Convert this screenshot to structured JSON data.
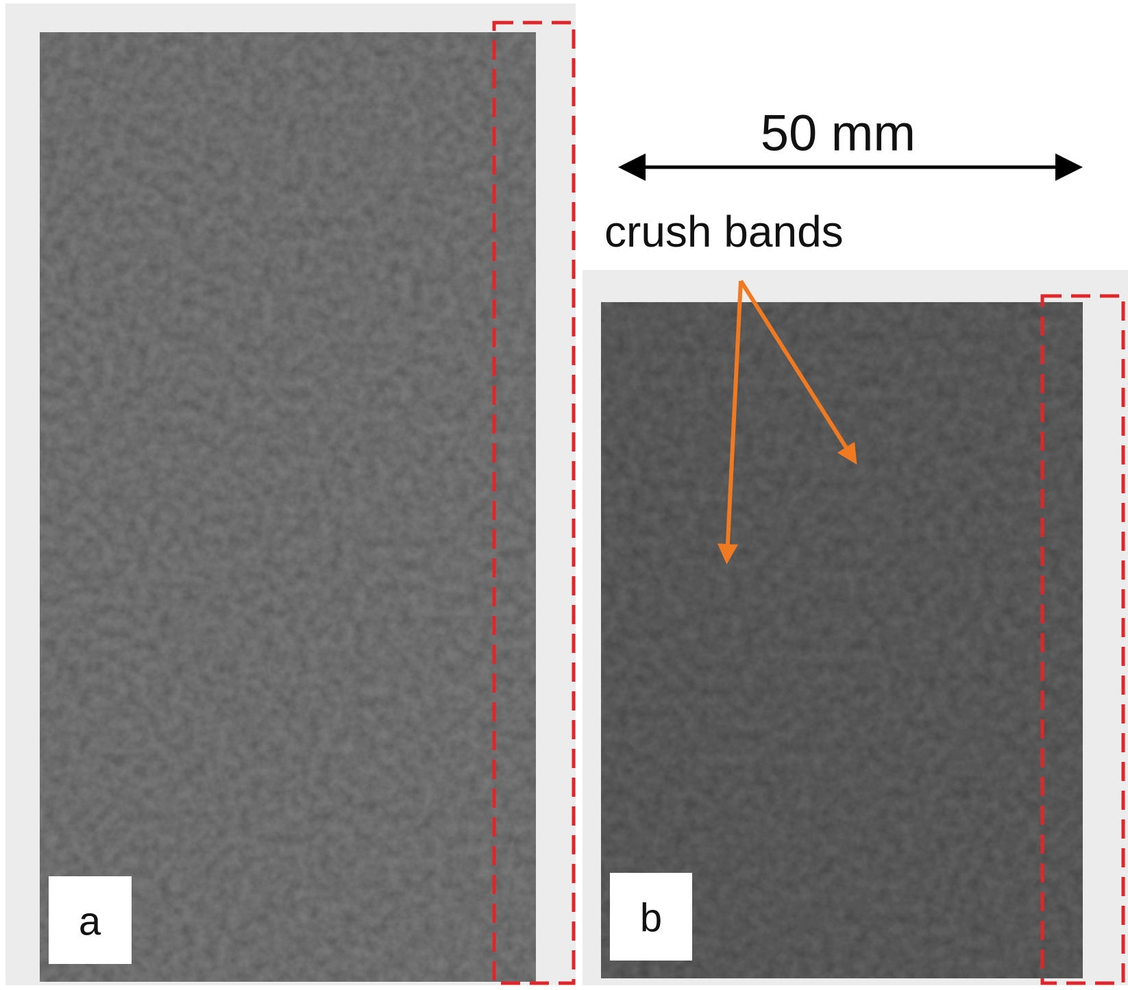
{
  "scale_label": "50 mm",
  "annotation": "crush bands",
  "panels": [
    {
      "label": "a"
    },
    {
      "label": "b"
    }
  ]
}
